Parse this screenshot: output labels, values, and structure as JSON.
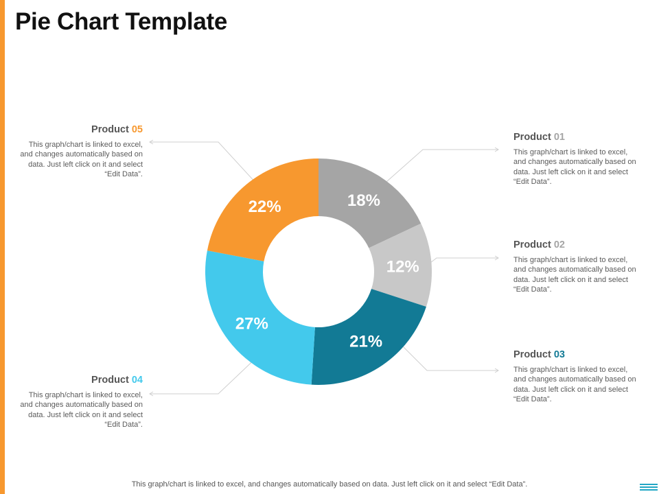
{
  "title": "Pie Chart Template",
  "footer": "This graph/chart is linked to excel, and changes automatically based on data. Just left click on it and select “Edit Data”.",
  "chart_data": {
    "type": "pie",
    "variant": "donut",
    "title": "Pie Chart Template",
    "start": "12 o'clock, clockwise",
    "slices": [
      {
        "category": "Product 01",
        "value": 18,
        "label": "18%",
        "color": "#a5a5a5"
      },
      {
        "category": "Product 02",
        "value": 12,
        "label": "12%",
        "color": "#c8c8c8"
      },
      {
        "category": "Product 03",
        "value": 21,
        "label": "21%",
        "color": "#127a95"
      },
      {
        "category": "Product 04",
        "value": 27,
        "label": "27%",
        "color": "#43c9ec"
      },
      {
        "category": "Product 05",
        "value": 22,
        "label": "22%",
        "color": "#f7982f"
      }
    ]
  },
  "callouts": [
    {
      "prefix": "Product ",
      "num": "01",
      "num_color": "#a5a5a5",
      "description": "This graph/chart is linked to excel, and changes automatically based on data. Just left click on it and select “Edit Data”."
    },
    {
      "prefix": "Product ",
      "num": "02",
      "num_color": "#a5a5a5",
      "description": "This graph/chart is linked to excel, and changes automatically based on data. Just left click on it and select “Edit Data”."
    },
    {
      "prefix": "Product ",
      "num": "03",
      "num_color": "#127a95",
      "description": "This graph/chart is linked to excel, and changes automatically based on data. Just left click on it and select “Edit Data”."
    },
    {
      "prefix": "Product ",
      "num": "04",
      "num_color": "#43c9ec",
      "description": "This graph/chart is linked to excel, and changes automatically based on data. Just left click on it and select “Edit Data”."
    },
    {
      "prefix": "Product ",
      "num": "05",
      "num_color": "#f7982f",
      "description": "This graph/chart is linked to excel, and changes automatically based on data. Just left click on it and select “Edit Data”."
    }
  ]
}
